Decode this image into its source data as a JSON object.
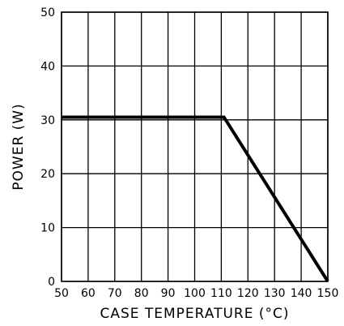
{
  "chart_data": {
    "type": "line",
    "title": "",
    "xlabel": "CASE TEMPERATURE (°C)",
    "ylabel": "POWER (W)",
    "xlim": [
      50,
      150
    ],
    "ylim": [
      0,
      50
    ],
    "x_ticks": [
      50,
      60,
      70,
      80,
      90,
      100,
      110,
      120,
      130,
      140,
      150
    ],
    "y_ticks": [
      0,
      10,
      20,
      30,
      40,
      50
    ],
    "grid": true,
    "legend": "none",
    "line_color": "#000000",
    "series": [
      {
        "x": [
          50,
          111,
          150
        ],
        "y": [
          30.5,
          30.5,
          0
        ]
      }
    ]
  }
}
